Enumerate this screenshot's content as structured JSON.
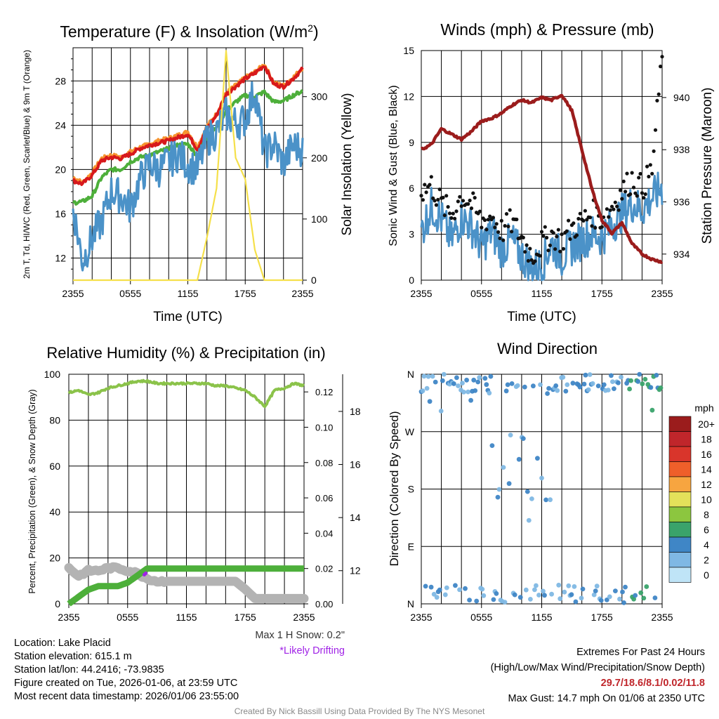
{
  "chart_data": [
    {
      "type": "line",
      "title": "Temperature (F) & Insolation (W/m²)",
      "xlabel": "Time (UTC)",
      "x_ticks": [
        "2355",
        "0555",
        "1155",
        "1755",
        "2355"
      ],
      "ylabel": "2m T, Td, HI/WC (Red, Green, Scarlet/Blue) & 9m T (Orange)",
      "ylim": [
        10,
        31
      ],
      "y_ticks": [
        12,
        16,
        20,
        24,
        28
      ],
      "y2label": "Solar Insolation (Yellow)",
      "y2lim": [
        0,
        380
      ],
      "y2_ticks": [
        0,
        100,
        200,
        300
      ],
      "hours": [
        0,
        1,
        2,
        3,
        4,
        5,
        6,
        7,
        8,
        9,
        10,
        11,
        12,
        13,
        14,
        15,
        16,
        17,
        18,
        19,
        20,
        21,
        22,
        23,
        24
      ],
      "series": [
        {
          "name": "9m T",
          "color": "#f7942f",
          "values": [
            19.3,
            18.8,
            19.7,
            21.0,
            21.3,
            21.1,
            21.6,
            22.0,
            22.3,
            22.6,
            22.8,
            23.1,
            23.4,
            22.0,
            23.9,
            25.0,
            26.9,
            27.6,
            28.3,
            28.8,
            29.5,
            27.8,
            27.6,
            28.3,
            29.2
          ]
        },
        {
          "name": "2m T",
          "color": "#d7191c",
          "values": [
            19.0,
            18.7,
            19.5,
            20.8,
            21.1,
            21.0,
            21.4,
            21.9,
            22.2,
            22.4,
            22.6,
            22.9,
            23.2,
            21.8,
            23.7,
            24.9,
            26.8,
            27.5,
            28.2,
            28.7,
            29.4,
            27.7,
            27.5,
            28.2,
            29.1
          ]
        },
        {
          "name": "Td",
          "color": "#4daf3a",
          "values": [
            17.0,
            17.1,
            17.6,
            19.3,
            20.0,
            20.0,
            20.7,
            21.1,
            21.3,
            21.6,
            21.9,
            22.2,
            22.3,
            21.2,
            23.0,
            23.8,
            25.3,
            26.1,
            26.7,
            26.6,
            27.0,
            26.1,
            26.2,
            26.7,
            27.1
          ]
        },
        {
          "name": "WC",
          "color": "#4b92c8",
          "values": [
            16.5,
            11.7,
            13.8,
            15.3,
            18.0,
            17.6,
            16.5,
            19.1,
            20.5,
            20.0,
            20.7,
            21.4,
            20.4,
            20.0,
            22.7,
            23.4,
            25.0,
            24.2,
            24.5,
            27.3,
            21.5,
            22.3,
            20.5,
            22.2,
            21.8
          ]
        },
        {
          "name": "Solar Insolation",
          "color": "#f5e04a",
          "axis": "y2",
          "values": [
            0,
            0,
            0,
            0,
            0,
            0,
            0,
            0,
            0,
            0,
            0,
            0,
            0,
            0,
            70,
            150,
            375,
            200,
            165,
            50,
            0,
            0,
            0,
            0,
            0
          ]
        }
      ]
    },
    {
      "type": "line+scatter",
      "title": "Winds (mph) & Pressure (mb)",
      "xlabel": "Time (UTC)",
      "x_ticks": [
        "2355",
        "0555",
        "1155",
        "1755",
        "2355"
      ],
      "ylabel": "Sonic Wind & Gust (Blue, Black)",
      "ylim": [
        0,
        15
      ],
      "y_ticks": [
        0,
        3,
        6,
        9,
        12,
        15
      ],
      "y2label": "Station Pressure (Maroon)",
      "y2lim": [
        933,
        941.8
      ],
      "y2_ticks": [
        934,
        936,
        938,
        940
      ],
      "hours": [
        0,
        1,
        2,
        3,
        4,
        5,
        6,
        7,
        8,
        9,
        10,
        11,
        12,
        13,
        14,
        15,
        16,
        17,
        18,
        19,
        20,
        21,
        22,
        23,
        24
      ],
      "series": [
        {
          "name": "Wind",
          "color": "#4b92c8",
          "values": [
            3.2,
            4.8,
            4.0,
            2.6,
            4.1,
            3.5,
            2.2,
            3.2,
            2.0,
            2.6,
            1.6,
            0.8,
            1.0,
            2.4,
            1.5,
            2.2,
            2.6,
            3.0,
            2.8,
            3.6,
            4.4,
            5.0,
            4.6,
            5.4,
            6.0
          ]
        },
        {
          "name": "Gust",
          "color": "#111111",
          "values": [
            5.8,
            6.2,
            5.0,
            4.3,
            5.5,
            5.0,
            3.8,
            4.2,
            3.2,
            3.8,
            2.8,
            1.6,
            2.4,
            3.0,
            2.6,
            3.4,
            3.8,
            4.4,
            4.0,
            4.8,
            5.8,
            6.6,
            6.0,
            7.2,
            14.6
          ]
        },
        {
          "name": "Station Pressure",
          "color": "#9b1c1c",
          "axis": "y2",
          "values": [
            938.0,
            938.2,
            938.8,
            938.6,
            938.4,
            938.7,
            939.1,
            939.2,
            939.4,
            939.7,
            939.9,
            939.8,
            940.0,
            939.9,
            940.1,
            939.5,
            938.0,
            936.5,
            935.3,
            934.8,
            935.2,
            934.4,
            934.0,
            933.8,
            933.7
          ]
        }
      ]
    },
    {
      "type": "line",
      "title": "Relative Humidity (%) & Precipitation (in)",
      "x_ticks": [
        "2355",
        "0555",
        "1155",
        "1755",
        "2355"
      ],
      "ylabel": "Percent, Precipitation (Green), & Snow Depth (Gray)",
      "ylim": [
        0,
        100
      ],
      "y_ticks": [
        0,
        20,
        40,
        60,
        80,
        100
      ],
      "y2lim": [
        0,
        0.13
      ],
      "y2_ticks": [
        "0.00",
        "0.02",
        "0.04",
        "0.06",
        "0.08",
        "0.10",
        "0.12"
      ],
      "y3lim": [
        10.75,
        19.4
      ],
      "y3_ticks": [
        12,
        14,
        16,
        18
      ],
      "hours": [
        0,
        1,
        2,
        3,
        4,
        5,
        6,
        7,
        8,
        9,
        10,
        11,
        12,
        13,
        14,
        15,
        16,
        17,
        18,
        19,
        20,
        21,
        22,
        23,
        24
      ],
      "series": [
        {
          "name": "RH",
          "color": "#8bc34a",
          "values": [
            92,
            93,
            91,
            92,
            94,
            95,
            96,
            97,
            97,
            96,
            96,
            96,
            96,
            96,
            96,
            95,
            95,
            94,
            93,
            90,
            86,
            93,
            94,
            96,
            95
          ]
        },
        {
          "name": "Precipitation",
          "color": "#4daf3a",
          "axis": "y2",
          "values": [
            0.0,
            0.004,
            0.008,
            0.01,
            0.01,
            0.01,
            0.012,
            0.016,
            0.02,
            0.02,
            0.02,
            0.02,
            0.02,
            0.02,
            0.02,
            0.02,
            0.02,
            0.02,
            0.02,
            0.02,
            0.02,
            0.02,
            0.02,
            0.02,
            0.02
          ]
        },
        {
          "name": "Snow Depth",
          "color": "#b3b3b3",
          "axis": "y3",
          "values": [
            12.1,
            11.8,
            12.0,
            12.0,
            12.1,
            12.1,
            12.0,
            11.9,
            11.7,
            11.6,
            11.6,
            11.6,
            11.6,
            11.6,
            11.6,
            11.6,
            11.6,
            11.6,
            11.3,
            10.95,
            10.95,
            10.95,
            10.95,
            10.95,
            10.95
          ]
        },
        {
          "name": "Likely Drifting",
          "color": "#a023e6",
          "axis": "y3",
          "values": [
            null,
            null,
            null,
            null,
            null,
            null,
            null,
            null,
            11.9,
            null,
            null,
            null,
            null,
            null,
            null,
            null,
            null,
            null,
            null,
            null,
            null,
            null,
            null,
            null,
            null
          ]
        }
      ]
    },
    {
      "type": "scatter",
      "title": "Wind Direction",
      "x_ticks": [
        "2355",
        "0555",
        "1155",
        "1755",
        "2355"
      ],
      "ylabel": "Direction (Colored By Speed)",
      "y_ticks": [
        "N",
        "E",
        "S",
        "W",
        "N"
      ],
      "ylim": [
        0,
        360
      ],
      "colorbar_title": "mph",
      "colorbar_labels": [
        "20+",
        "18",
        "16",
        "14",
        "12",
        "10",
        "8",
        "6",
        "4",
        "2",
        "0"
      ],
      "colorbar_colors": [
        "#9b1c1c",
        "#c0262b",
        "#d9352b",
        "#ef5f2a",
        "#f7a540",
        "#e4e15a",
        "#8cc63f",
        "#3aa36b",
        "#3f86c6",
        "#7fb8e4",
        "#bfe4f7"
      ]
    }
  ],
  "station": {
    "location": "Location: Lake Placid",
    "elevation": "Station elevation: 615.1 m",
    "latlon": "Station lat/lon: 44.2416; -73.9835",
    "created": "Figure created on Tue, 2026-01-06, at 23:59 UTC",
    "recent": "Most recent data timestamp: 2026/01/06 23:55:00"
  },
  "snow": {
    "max_snow": "Max 1 H Snow: 0.2\"",
    "drifting": "*Likely Drifting"
  },
  "extremes": {
    "title": "Extremes For Past 24 Hours",
    "subtitle": "(High/Low/Max Wind/Precipitation/Snow Depth)",
    "values": "29.7/18.6/8.1/0.02/11.8",
    "max_gust": "Max Gust: 14.7 mph On 01/06 at 2350 UTC"
  },
  "credit": "Created By Nick Bassill Using Data Provided By The NYS Mesonet"
}
